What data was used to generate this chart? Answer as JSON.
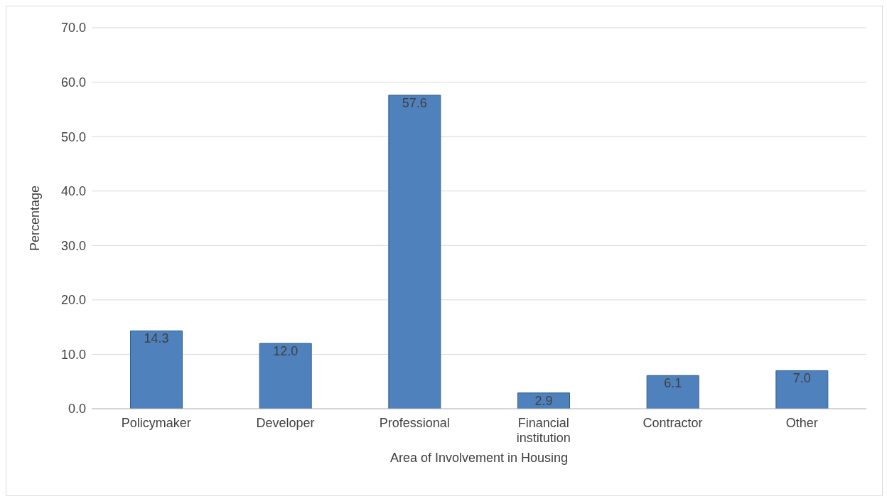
{
  "chart_data": {
    "type": "bar",
    "xlabel": "Area of Involvement in Housing",
    "ylabel": "Percentage",
    "categories": [
      "Policymaker",
      "Developer",
      "Professional",
      "Financial institution",
      "Contractor",
      "Other"
    ],
    "values": [
      14.3,
      12.0,
      57.6,
      2.9,
      6.1,
      7.0
    ],
    "value_labels": [
      "14.3",
      "12.0",
      "57.6",
      "2.9",
      "6.1",
      "7.0"
    ],
    "color": "#4f81bd",
    "ylim": [
      0,
      70
    ],
    "yticks": [
      {
        "value": 0,
        "label": "0.0"
      },
      {
        "value": 10,
        "label": "10.0"
      },
      {
        "value": 20,
        "label": "20.0"
      },
      {
        "value": 30,
        "label": "30.0"
      },
      {
        "value": 40,
        "label": "40.0"
      },
      {
        "value": 50,
        "label": "50.0"
      },
      {
        "value": 60,
        "label": "60.0"
      },
      {
        "value": 70,
        "label": "70.0"
      }
    ],
    "grid": "y",
    "legend": false
  }
}
